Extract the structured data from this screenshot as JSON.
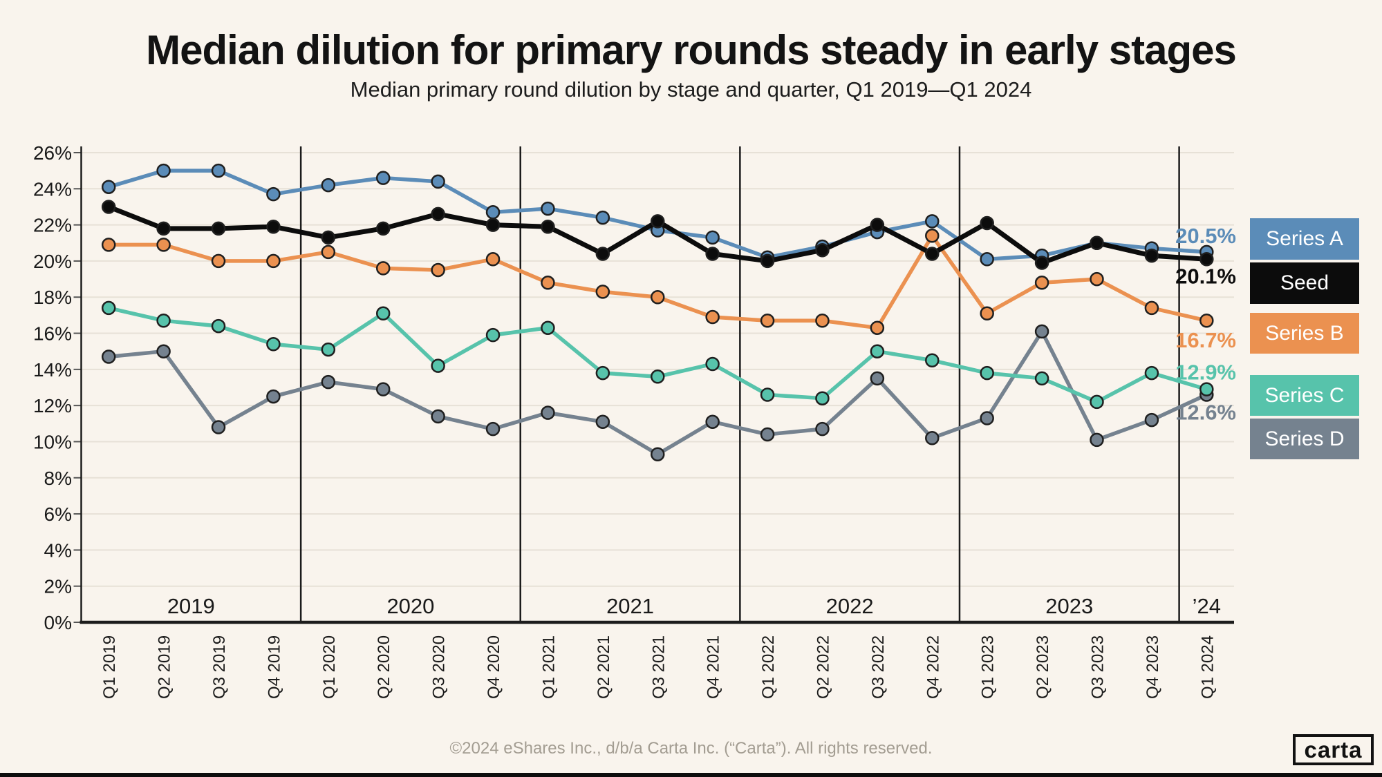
{
  "title": "Median dilution for primary rounds steady in early stages",
  "subtitle": "Median primary round dilution by stage and quarter, Q1 2019—Q1 2024",
  "footer": "©2024 eShares Inc., d/b/a Carta Inc. (“Carta”). All rights reserved.",
  "logo_text": "carta",
  "colors": {
    "background": "#f9f4ed",
    "gridline": "#e7e1d7",
    "axis": "#1c1c1c",
    "tick_text": "#1a1a1a",
    "muted_text": "#a39d92",
    "dot_stroke": "#1f1f1f"
  },
  "chart_data": {
    "type": "line",
    "x": [
      "Q1 2019",
      "Q2 2019",
      "Q3 2019",
      "Q4 2019",
      "Q1 2020",
      "Q2 2020",
      "Q3 2020",
      "Q4 2020",
      "Q1 2021",
      "Q2 2021",
      "Q3 2021",
      "Q4 2021",
      "Q1 2022",
      "Q2 2022",
      "Q3 2022",
      "Q4 2022",
      "Q1 2023",
      "Q2 2023",
      "Q3 2023",
      "Q4 2023",
      "Q1 2024"
    ],
    "year_groups": [
      {
        "label": "2019",
        "span": 4
      },
      {
        "label": "2020",
        "span": 4
      },
      {
        "label": "2021",
        "span": 4
      },
      {
        "label": "2022",
        "span": 4
      },
      {
        "label": "2023",
        "span": 4
      },
      {
        "label": "’24",
        "span": 1
      }
    ],
    "ylim": [
      0,
      26
    ],
    "ytick_step": 2,
    "ytick_suffix": "%",
    "grid": true,
    "legend_position": "right",
    "series": [
      {
        "name": "Series A",
        "color": "#5b8cb8",
        "end_label": "20.5%",
        "values": [
          24.1,
          25.0,
          25.0,
          23.7,
          24.2,
          24.6,
          24.4,
          22.7,
          22.9,
          22.4,
          21.7,
          21.3,
          20.2,
          20.8,
          21.6,
          22.2,
          20.1,
          20.3,
          21.0,
          20.7,
          20.5
        ]
      },
      {
        "name": "Seed",
        "color": "#0c0c0c",
        "end_label": "20.1%",
        "values": [
          23.0,
          21.8,
          21.8,
          21.9,
          21.3,
          21.8,
          22.6,
          22.0,
          21.9,
          20.4,
          22.2,
          20.4,
          20.0,
          20.6,
          22.0,
          20.4,
          22.1,
          19.9,
          21.0,
          20.3,
          20.1
        ]
      },
      {
        "name": "Series B",
        "color": "#eb9150",
        "end_label": "16.7%",
        "values": [
          20.9,
          20.9,
          20.0,
          20.0,
          20.5,
          19.6,
          19.5,
          20.1,
          18.8,
          18.3,
          18.0,
          16.9,
          16.7,
          16.7,
          16.3,
          21.4,
          17.1,
          18.8,
          19.0,
          17.4,
          16.7
        ]
      },
      {
        "name": "Series C",
        "color": "#57c3ab",
        "end_label": "12.9%",
        "values": [
          17.4,
          16.7,
          16.4,
          15.4,
          15.1,
          17.1,
          14.2,
          15.9,
          16.3,
          13.8,
          13.6,
          14.3,
          12.6,
          12.4,
          15.0,
          14.5,
          13.8,
          13.5,
          12.2,
          13.8,
          12.9
        ]
      },
      {
        "name": "Series D",
        "color": "#75828f",
        "end_label": "12.6%",
        "values": [
          14.7,
          15.0,
          10.8,
          12.5,
          13.3,
          12.9,
          11.4,
          10.7,
          11.6,
          11.1,
          9.3,
          11.1,
          10.4,
          10.7,
          13.5,
          10.2,
          11.3,
          16.1,
          10.1,
          11.2,
          12.6
        ]
      }
    ]
  }
}
